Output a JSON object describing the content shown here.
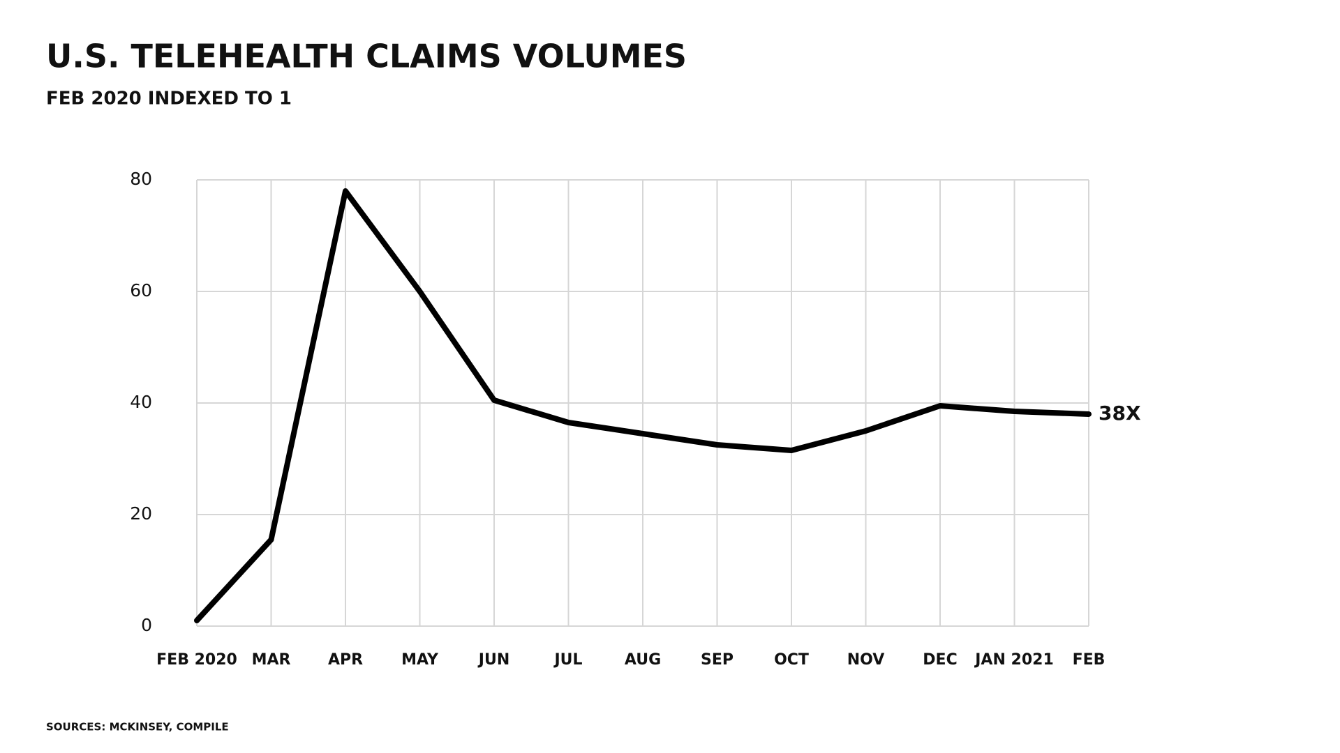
{
  "chart_data": {
    "type": "line",
    "title": "U.S. TELEHEALTH CLAIMS VOLUMES",
    "subtitle": "FEB 2020 INDEXED TO 1",
    "source": "SOURCES: MCKINSEY, COMPILE",
    "categories": [
      "FEB 2020",
      "MAR",
      "APR",
      "MAY",
      "JUN",
      "JUL",
      "AUG",
      "SEP",
      "OCT",
      "NOV",
      "DEC",
      "JAN 2021",
      "FEB"
    ],
    "values": [
      1,
      15.5,
      78,
      60,
      40.5,
      36.5,
      34.5,
      32.5,
      31.5,
      35,
      39.5,
      38.5,
      38
    ],
    "value_labels": [
      null,
      null,
      null,
      null,
      null,
      null,
      null,
      null,
      null,
      null,
      null,
      null,
      "38X"
    ],
    "color": "#000000",
    "ylim": [
      0,
      80
    ],
    "yticks": [
      0,
      20,
      40,
      60,
      80
    ],
    "grid": true
  }
}
